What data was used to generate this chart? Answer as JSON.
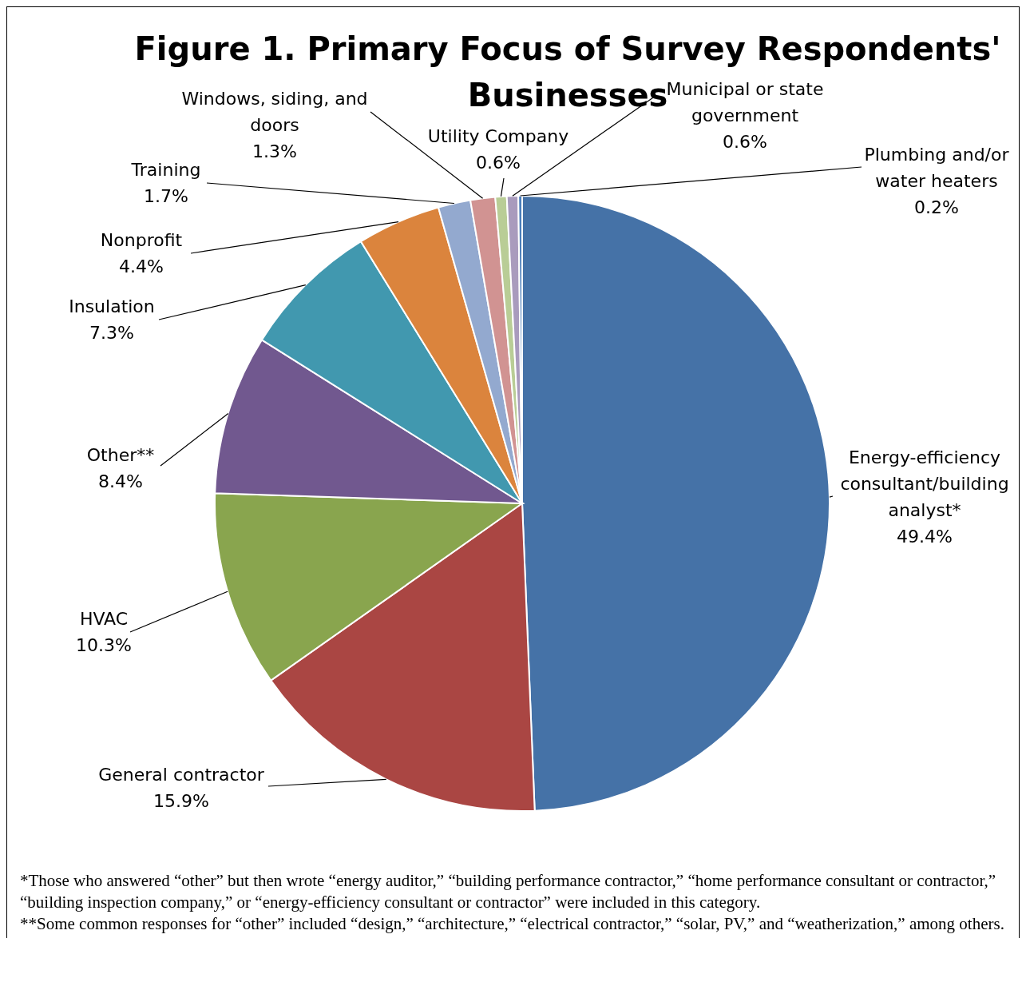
{
  "chart_data": {
    "type": "pie",
    "title": "Figure 1. Primary Focus of Survey Respondents' Businesses",
    "categories": [
      "Energy-efficiency consultant/building analyst*",
      "General contractor",
      "HVAC",
      "Other**",
      "Insulation",
      "Nonprofit",
      "Training",
      "Windows, siding, and doors",
      "Utility Company",
      "Municipal or state government",
      "Plumbing and/or water heaters"
    ],
    "values": [
      49.4,
      15.9,
      10.3,
      8.4,
      7.3,
      4.4,
      1.7,
      1.3,
      0.6,
      0.6,
      0.2
    ],
    "value_labels": [
      "49.4%",
      "15.9%",
      "10.3%",
      "8.4%",
      "7.3%",
      "4.4%",
      "1.7%",
      "1.3%",
      "0.6%",
      "0.6%",
      "0.2%"
    ],
    "colors": [
      "#4572a7",
      "#aa4643",
      "#89a54e",
      "#71588f",
      "#4198af",
      "#db843d",
      "#93a9cf",
      "#d19392",
      "#b9cd96",
      "#a99bbd",
      "#4a7ebb"
    ],
    "annotations": [
      "*Those who answered “other” but then wrote “energy auditor,” “building performance contractor,” “home performance consultant or contractor,” “building inspection company,” or “energy-efficiency consultant or contractor” were included in this category.",
      "**Some common responses for “other” included “design,” “architecture,” “electrical contractor,” “solar, PV,” and “weatherization,” among others."
    ]
  }
}
